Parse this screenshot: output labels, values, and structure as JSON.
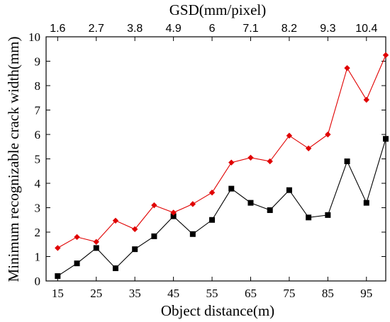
{
  "chart_data": {
    "type": "line",
    "title": "",
    "xlabel": "Object distance(m)",
    "ylabel": "Minimum recognizable crack width(mm)",
    "top_axis_label": "GSD(mm/pixel)",
    "xlim": [
      12,
      100
    ],
    "ylim": [
      0,
      10
    ],
    "x_ticks": [
      15,
      25,
      35,
      45,
      55,
      65,
      75,
      85,
      95
    ],
    "y_ticks": [
      0,
      1,
      2,
      3,
      4,
      5,
      6,
      7,
      8,
      9,
      10
    ],
    "top_ticks": [
      {
        "x": 15,
        "label": "1.6"
      },
      {
        "x": 25,
        "label": "2.7"
      },
      {
        "x": 35,
        "label": "3.8"
      },
      {
        "x": 45,
        "label": "4.9"
      },
      {
        "x": 55,
        "label": "6"
      },
      {
        "x": 65,
        "label": "7.1"
      },
      {
        "x": 75,
        "label": "8.2"
      },
      {
        "x": 85,
        "label": "9.3"
      },
      {
        "x": 95,
        "label": "10.4"
      }
    ],
    "grid": false,
    "x": [
      15,
      20,
      25,
      30,
      35,
      40,
      45,
      50,
      55,
      60,
      65,
      70,
      75,
      80,
      85,
      90,
      95,
      100
    ],
    "series": [
      {
        "marker": "square",
        "color": "#000000",
        "values": [
          0.2,
          0.72,
          1.35,
          0.52,
          1.3,
          1.83,
          2.65,
          1.92,
          2.5,
          3.78,
          3.2,
          2.9,
          3.72,
          2.6,
          2.7,
          4.9,
          3.2,
          5.82
        ]
      },
      {
        "marker": "diamond",
        "color": "#e00000",
        "values": [
          1.35,
          1.8,
          1.6,
          2.47,
          2.12,
          3.1,
          2.8,
          3.15,
          3.62,
          4.85,
          5.05,
          4.9,
          5.95,
          5.43,
          6.0,
          8.72,
          7.42,
          9.25
        ]
      }
    ]
  }
}
